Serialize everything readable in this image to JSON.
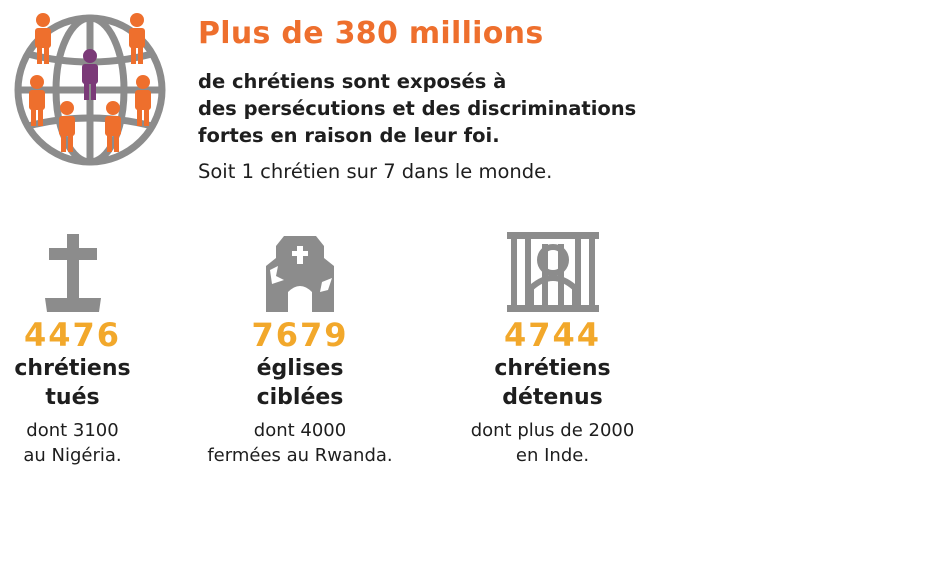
{
  "header": {
    "headline": "Plus de 380 millions",
    "lead_lines": [
      "de chrétiens sont exposés à",
      "des persécutions et des discriminations",
      "fortes en raison de leur foi."
    ],
    "sub": "Soit 1 chrétien sur 7 dans le monde."
  },
  "stats": [
    {
      "icon": "tombstone-cross-icon",
      "value": "4476",
      "label_lines": [
        "chrétiens",
        "tués"
      ],
      "detail_lines": [
        "dont 3100",
        "au Nigéria."
      ]
    },
    {
      "icon": "damaged-church-icon",
      "value": "7679",
      "label_lines": [
        "églises",
        "ciblées"
      ],
      "detail_lines": [
        "dont 4000",
        "fermées au Rwanda."
      ]
    },
    {
      "icon": "prison-bars-icon",
      "value": "4744",
      "label_lines": [
        "chrétiens",
        "détenus"
      ],
      "detail_lines": [
        "dont plus de 2000",
        "en Inde."
      ]
    }
  ],
  "colors": {
    "orange": "#ee6f2d",
    "amber": "#f2a82b",
    "purple": "#7b3a78",
    "gray": "#8c8c8c",
    "text": "#1e1e1e"
  }
}
